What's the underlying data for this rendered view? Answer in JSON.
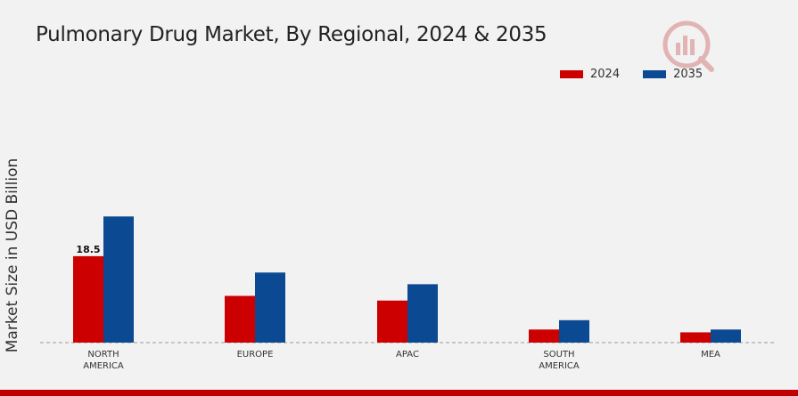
{
  "chart_data": {
    "type": "bar",
    "title": "Pulmonary Drug Market, By Regional, 2024 & 2035",
    "ylabel": "Market Size in USD Billion",
    "xlabel": "",
    "categories": [
      [
        "NORTH",
        "AMERICA"
      ],
      [
        "EUROPE"
      ],
      [
        "APAC"
      ],
      [
        "SOUTH",
        "AMERICA"
      ],
      [
        "MEA"
      ]
    ],
    "series": [
      {
        "name": "2024",
        "color": "#cc0000",
        "values": [
          18.5,
          10.0,
          9.0,
          2.8,
          2.2
        ]
      },
      {
        "name": "2035",
        "color": "#0b4a92",
        "values": [
          27.0,
          15.0,
          12.5,
          4.8,
          2.8
        ]
      }
    ],
    "data_labels": [
      {
        "series": 0,
        "index": 0,
        "text": "18.5"
      }
    ],
    "ylim": [
      0,
      40
    ],
    "grid": false,
    "legend_position": "top-right"
  }
}
